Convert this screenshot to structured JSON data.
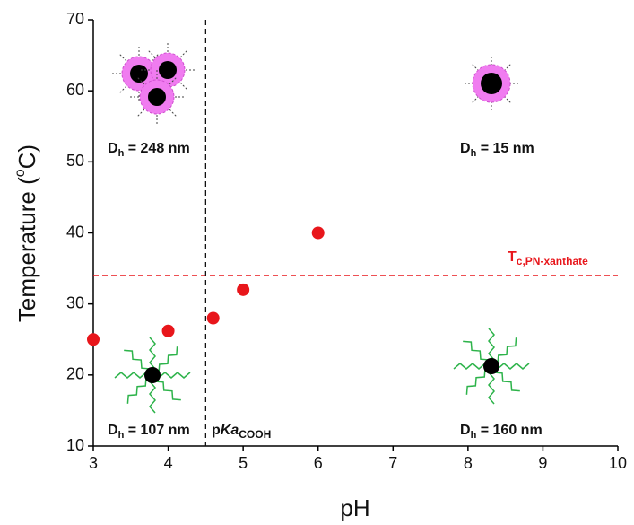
{
  "chart_data": {
    "type": "scatter",
    "x_label": "pH",
    "y_label": {
      "before": "Temperature (",
      "sup": "o",
      "after": "C)"
    },
    "x": [
      3,
      4,
      4.6,
      5,
      6
    ],
    "values": [
      25,
      26.2,
      28,
      32,
      40
    ],
    "color": "#e8161b",
    "xlim": [
      3,
      10
    ],
    "ylim": [
      10,
      70
    ],
    "xticks": [
      3,
      4,
      5,
      6,
      7,
      8,
      9,
      10
    ],
    "yticks": [
      10,
      20,
      30,
      40,
      50,
      60,
      70
    ],
    "hline": {
      "value": 34,
      "color": "#e8161b",
      "label": "T",
      "label_sub": "c,PN-xanthate"
    },
    "vline": {
      "value": 4.5,
      "color": "#111111",
      "label": "p",
      "label_italic": "Ka",
      "label_sub": "COOH"
    },
    "annotations": [
      {
        "main": "D",
        "sub": "h",
        "rest": " = 248 nm"
      },
      {
        "main": "D",
        "sub": "h",
        "rest": " = 15 nm"
      },
      {
        "main": "D",
        "sub": "h",
        "rest": " = 107 nm"
      },
      {
        "main": "D",
        "sub": "h",
        "rest": " = 160 nm"
      }
    ]
  }
}
